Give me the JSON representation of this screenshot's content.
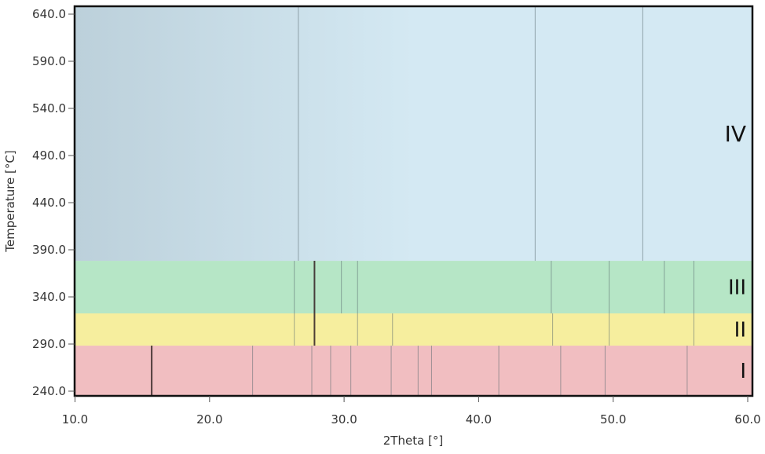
{
  "chart_data": {
    "type": "heatmap",
    "title": "",
    "xlabel": "2Theta [°]",
    "ylabel": "Temperature [°C]",
    "xlim": [
      10.0,
      60.35
    ],
    "ylim": [
      234,
      648
    ],
    "x_ticks": [
      "10.0",
      "20.0",
      "30.0",
      "40.0",
      "50.0",
      "60.0"
    ],
    "y_ticks": [
      "240.0",
      "290.0",
      "340.0",
      "390.0",
      "440.0",
      "490.0",
      "540.0",
      "590.0",
      "640.0"
    ],
    "grid": false,
    "regions": [
      {
        "label": "I",
        "t_min": 234,
        "t_max": 288.3,
        "color": "#f1bec1",
        "peaks": [
          15.7,
          23.2,
          27.6,
          29.0,
          30.5,
          33.5,
          35.5,
          36.5,
          41.5,
          46.1,
          49.4,
          55.5
        ]
      },
      {
        "label": "II",
        "t_min": 288.3,
        "t_max": 322.5,
        "color": "#f6ee9e",
        "peaks": [
          26.3,
          27.8,
          31.0,
          33.6,
          45.5,
          49.7,
          56.0
        ]
      },
      {
        "label": "III",
        "t_min": 322.5,
        "t_max": 378.3,
        "color": "#b6e6c6",
        "peaks": [
          26.3,
          27.8,
          29.8,
          31.0,
          45.4,
          49.7,
          53.8,
          56.0
        ]
      },
      {
        "label": "IV",
        "t_min": 378.3,
        "t_max": 648,
        "color": "#d4e9f3",
        "peaks": [
          26.6,
          44.2,
          52.2
        ]
      }
    ]
  }
}
